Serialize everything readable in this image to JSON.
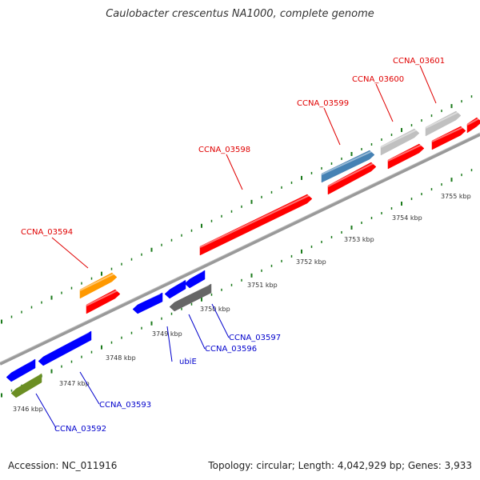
{
  "title": "Caulobacter crescentus NA1000, complete genome",
  "footer": {
    "accession": "Accession: NC_011916",
    "summary": "Topology: circular; Length: 4,042,929 bp; Genes: 3,933"
  },
  "colors": {
    "forward_label": "#e00000",
    "reverse_label": "#0000cc",
    "backbone": "#888888",
    "tick": "#1a7a1a"
  },
  "kbp_labels": [
    {
      "text": "3746 kbp"
    },
    {
      "text": "3747 kbp"
    },
    {
      "text": "3748 kbp"
    },
    {
      "text": "3749 kbp"
    },
    {
      "text": "3750 kbp"
    },
    {
      "text": "3751 kbp"
    },
    {
      "text": "3752 kbp"
    },
    {
      "text": "3753 kbp"
    },
    {
      "text": "3754 kbp"
    },
    {
      "text": "3755 kbp"
    }
  ],
  "gene_labels": [
    {
      "text": "CCNA_03594",
      "strand": "forward"
    },
    {
      "text": "CCNA_03598",
      "strand": "forward"
    },
    {
      "text": "CCNA_03599",
      "strand": "forward"
    },
    {
      "text": "CCNA_03600",
      "strand": "forward"
    },
    {
      "text": "CCNA_03601",
      "strand": "forward"
    },
    {
      "text": "CCNA_03592",
      "strand": "reverse"
    },
    {
      "text": "CCNA_03593",
      "strand": "reverse"
    },
    {
      "text": "ubiE",
      "strand": "reverse"
    },
    {
      "text": "CCNA_03596",
      "strand": "reverse"
    },
    {
      "text": "CCNA_03597",
      "strand": "reverse"
    }
  ],
  "features": [
    {
      "name": "forward-gene-a",
      "color": "#ff0000"
    },
    {
      "name": "forward-gene-b",
      "color": "#ff0000"
    },
    {
      "name": "forward-gene-c",
      "color": "#ff0000"
    },
    {
      "name": "forward-gene-d",
      "color": "#ff0000"
    },
    {
      "name": "forward-gene-e",
      "color": "#ff0000"
    },
    {
      "name": "forward-gene-f",
      "color": "#ff0000"
    },
    {
      "name": "forward-orange-gene",
      "color": "#ff9900"
    },
    {
      "name": "forward-steelblue-gene",
      "color": "#4682b4"
    },
    {
      "name": "forward-gray-gene-a",
      "color": "#c0c0c0"
    },
    {
      "name": "forward-gray-gene-b",
      "color": "#c0c0c0"
    },
    {
      "name": "reverse-gene-a",
      "color": "#0000ff"
    },
    {
      "name": "reverse-gene-b",
      "color": "#0000ff"
    },
    {
      "name": "reverse-gene-c",
      "color": "#0000ff"
    },
    {
      "name": "reverse-gene-d",
      "color": "#0000ff"
    },
    {
      "name": "reverse-gene-e",
      "color": "#0000ff"
    },
    {
      "name": "reverse-darkgray-gene",
      "color": "#666666"
    },
    {
      "name": "reverse-olive-gene",
      "color": "#6b8e23"
    }
  ]
}
